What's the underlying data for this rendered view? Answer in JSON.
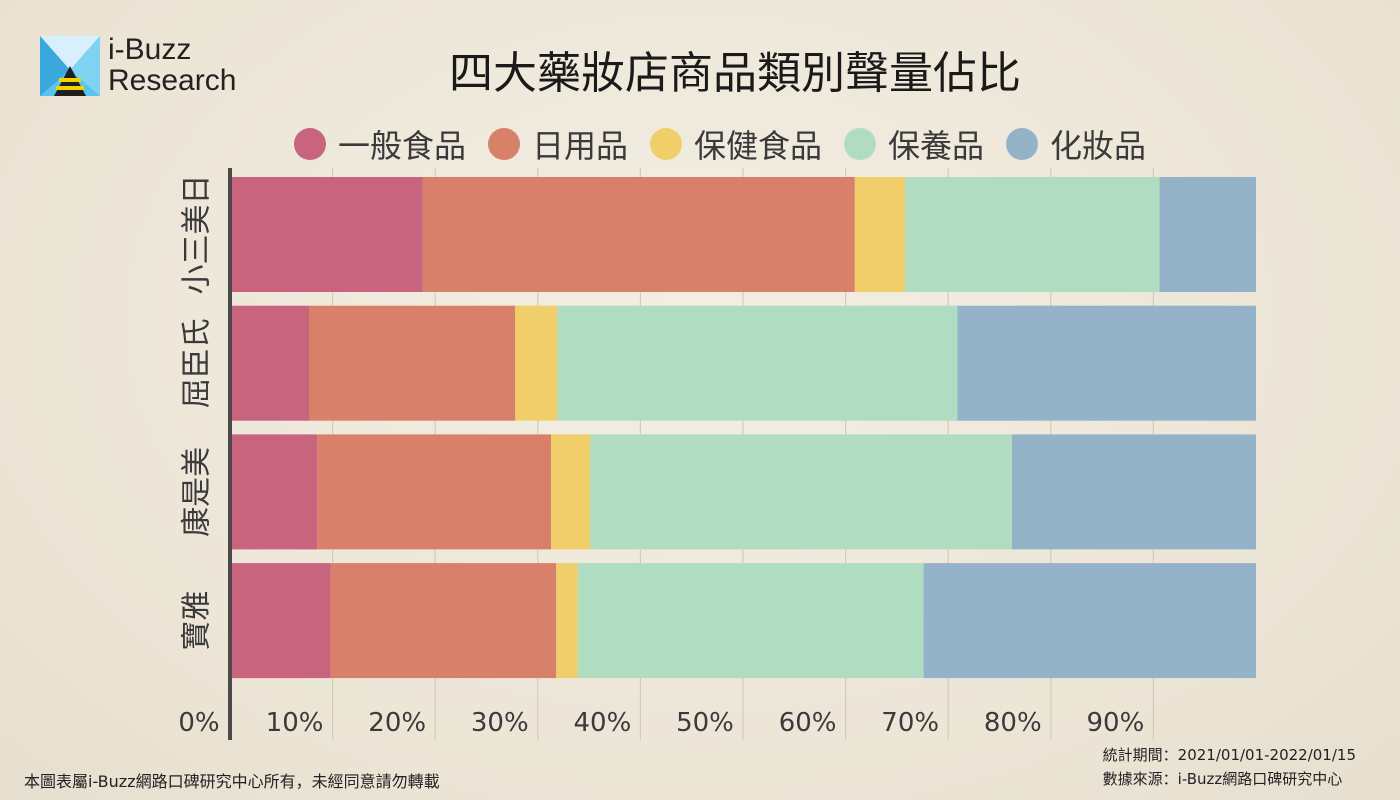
{
  "brand": {
    "line1": "i-Buzz",
    "line2": "Research"
  },
  "chart_data": {
    "type": "bar",
    "orientation": "horizontal",
    "stacked": true,
    "title": "四大藥妝店商品類別聲量佔比",
    "categories": [
      "小三美日",
      "屈臣氏",
      "康是美",
      "寶雅"
    ],
    "series": [
      {
        "name": "一般食品",
        "color": "#c9647e",
        "values": [
          18.8,
          7.7,
          8.5,
          9.8
        ]
      },
      {
        "name": "日用品",
        "color": "#d8806a",
        "values": [
          42.1,
          20.1,
          22.8,
          22.0
        ]
      },
      {
        "name": "保健食品",
        "color": "#f0cf6a",
        "values": [
          4.9,
          4.1,
          3.8,
          2.1
        ]
      },
      {
        "name": "保養品",
        "color": "#b0dcc2",
        "values": [
          24.8,
          39.0,
          41.1,
          33.7
        ]
      },
      {
        "name": "化妝品",
        "color": "#94b3c8",
        "values": [
          9.4,
          29.1,
          23.8,
          32.4
        ]
      }
    ],
    "x_ticks": [
      "0%",
      "10%",
      "20%",
      "30%",
      "40%",
      "50%",
      "60%",
      "70%",
      "80%",
      "90%"
    ],
    "xlim": [
      0,
      100
    ],
    "grid": true,
    "legend_position": "top"
  },
  "footer": {
    "copyright": "本圖表屬i-Buzz網路口碑研究中心所有，未經同意請勿轉載",
    "period": "統計期間：2021/01/01-2022/01/15",
    "source": "數據來源：i-Buzz網路口碑研究中心"
  }
}
